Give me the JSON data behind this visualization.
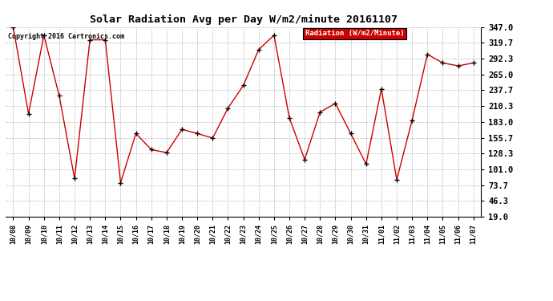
{
  "title": "Solar Radiation Avg per Day W/m2/minute 20161107",
  "copyright": "Copyright 2016 Cartronics.com",
  "legend_label": "Radiation (W/m2/Minute)",
  "dates": [
    "10/08",
    "10/09",
    "10/10",
    "10/11",
    "10/12",
    "10/13",
    "10/14",
    "10/15",
    "10/16",
    "10/17",
    "10/18",
    "10/19",
    "10/20",
    "10/21",
    "10/22",
    "10/23",
    "10/24",
    "10/25",
    "10/26",
    "10/27",
    "10/28",
    "10/29",
    "10/30",
    "10/31",
    "11/01",
    "11/02",
    "11/03",
    "11/04",
    "11/05",
    "11/06",
    "11/07"
  ],
  "values": [
    347.0,
    197.0,
    333.0,
    228.0,
    85.0,
    325.0,
    325.0,
    78.0,
    163.0,
    135.0,
    130.0,
    170.0,
    163.0,
    155.0,
    207.0,
    246.0,
    308.0,
    333.0,
    190.0,
    118.0,
    200.0,
    215.0,
    163.0,
    110.0,
    240.0,
    83.0,
    186.0,
    300.0,
    285.0,
    280.0,
    285.0
  ],
  "line_color": "#cc0000",
  "marker_color": "black",
  "background_color": "#ffffff",
  "grid_color": "#aaaaaa",
  "ylim": [
    19.0,
    347.0
  ],
  "yticks": [
    19.0,
    46.3,
    73.7,
    101.0,
    128.3,
    155.7,
    183.0,
    210.3,
    237.7,
    265.0,
    292.3,
    319.7,
    347.0
  ],
  "legend_bg": "#cc0000",
  "legend_text_color": "white",
  "fig_width": 6.9,
  "fig_height": 3.75,
  "dpi": 100
}
